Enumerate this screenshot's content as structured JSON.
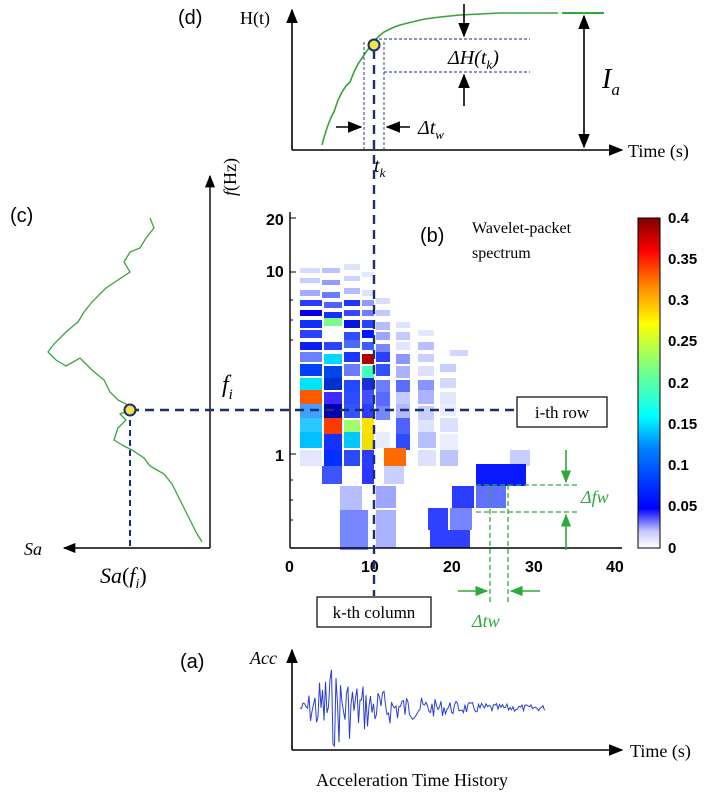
{
  "panels": {
    "a": {
      "label": "(a)",
      "y_label": "Acc",
      "x_label": "Time (s)",
      "caption": "Acceleration Time History"
    },
    "b": {
      "label": "(b)",
      "title_line1": "Wavelet-packet",
      "title_line2": "spectrum",
      "x_ticks": [
        "0",
        "10",
        "20",
        "30",
        "40"
      ],
      "y_ticks": [
        "1",
        "10",
        "20"
      ],
      "colorbar_ticks": [
        "0.4",
        "0.35",
        "0.3",
        "0.25",
        "0.2",
        "0.15",
        "0.1",
        "0.05",
        "0"
      ],
      "row_box": "i-th row",
      "column_box": "k-th column"
    },
    "c": {
      "label": "(c)",
      "y_label_f": "f",
      "y_label_unit": "(Hz)",
      "x_label": "Sa",
      "fi_label": "f",
      "fi_sub": "i",
      "sa_fi_label": "Sa",
      "sa_fi_arg": "f",
      "sa_fi_sub": "i"
    },
    "d": {
      "label": "(d)",
      "y_label": "H(t)",
      "x_label": "Time (s)",
      "ia_label": "I",
      "ia_sub": "a",
      "dh_label": "ΔH(t",
      "dh_sub": "k",
      "dtw_label": "Δt",
      "dtw_sub": "w",
      "tk_label": "t",
      "tk_sub": "k"
    }
  },
  "annotations": {
    "delta_fw": "Δfw",
    "delta_tw": "Δtw"
  },
  "colors": {
    "curve_green": "#3aa33a",
    "guide_navy": "#1b2f6e",
    "dim_green": "#2eaa3c",
    "marker_yellow": "#f2e34a",
    "signal_blue": "#2a3fd0"
  }
}
